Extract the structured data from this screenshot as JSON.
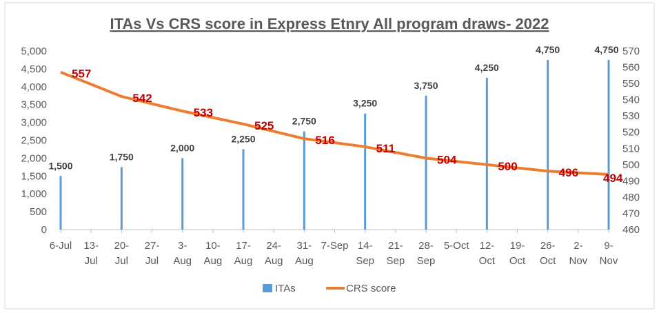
{
  "chart_data": {
    "type": "bar+line",
    "title": "ITAs Vs CRS score in Express Etnry All program draws- 2022",
    "x_tick_labels": [
      [
        "6-Jul"
      ],
      [
        "13-",
        "Jul"
      ],
      [
        "20-",
        "Jul"
      ],
      [
        "27-",
        "Jul"
      ],
      [
        "3-",
        "Aug"
      ],
      [
        "10-",
        "Aug"
      ],
      [
        "17-",
        "Aug"
      ],
      [
        "24-",
        "Aug"
      ],
      [
        "31-",
        "Aug"
      ],
      [
        "7-Sep"
      ],
      [
        "14-",
        "Sep"
      ],
      [
        "21-",
        "Sep"
      ],
      [
        "28-",
        "Sep"
      ],
      [
        "5-Oct"
      ],
      [
        "12-",
        "Oct"
      ],
      [
        "19-",
        "Oct"
      ],
      [
        "26-",
        "Oct"
      ],
      [
        "2-",
        "Nov"
      ],
      [
        "9-",
        "Nov"
      ]
    ],
    "categories": [
      "6-Jul",
      "20-Jul",
      "3-Aug",
      "17-Aug",
      "31-Aug",
      "14-Sep",
      "28-Sep",
      "12-Oct",
      "26-Oct",
      "9-Nov"
    ],
    "series": [
      {
        "name": "ITAs",
        "type": "bar",
        "axis": "left",
        "color": "#5b9bd5",
        "values": [
          1500,
          1750,
          2000,
          2250,
          2750,
          3250,
          3750,
          4250,
          4750,
          4750
        ],
        "labels": [
          "1,500",
          "1,750",
          "2,000",
          "2,250",
          "2,750",
          "3,250",
          "3,750",
          "4,250",
          "4,750",
          "4,750"
        ]
      },
      {
        "name": "CRS score",
        "type": "line",
        "axis": "right",
        "color": "#ed7d31",
        "values": [
          557,
          542,
          533,
          525,
          516,
          511,
          504,
          500,
          496,
          494
        ],
        "labels": [
          "557",
          "542",
          "533",
          "525",
          "516",
          "511",
          "504",
          "500",
          "496",
          "494"
        ]
      }
    ],
    "y_left": {
      "range": [
        0,
        5000
      ],
      "ticks": [
        "0",
        "500",
        "1,000",
        "1,500",
        "2,000",
        "2,500",
        "3,000",
        "3,500",
        "4,000",
        "4,500",
        "5,000"
      ]
    },
    "y_right": {
      "range": [
        460,
        570
      ],
      "ticks": [
        "460",
        "470",
        "480",
        "490",
        "500",
        "510",
        "520",
        "530",
        "540",
        "550",
        "560",
        "570"
      ]
    },
    "grid": false,
    "legend": "bottom"
  }
}
